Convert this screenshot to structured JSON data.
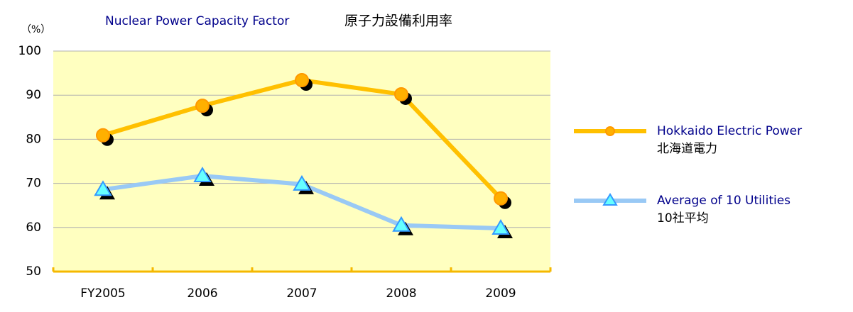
{
  "chart_data": {
    "type": "line",
    "title": "Nuclear Power Capacity Factor",
    "title_ja": "原子力設備利用率",
    "y_label": "（%）",
    "categories": [
      "FY2005",
      "2006",
      "2007",
      "2008",
      "2009"
    ],
    "series": [
      {
        "name": "Hokkaido Electric Power",
        "name_ja": "北海道電力",
        "color": "#ffc000",
        "marker_color": "#ffb000",
        "marker": "circle",
        "values": [
          80.9,
          87.6,
          93.4,
          90.2,
          66.6
        ]
      },
      {
        "name": "Average of 10 Utilities",
        "name_ja": "10社平均",
        "color": "#99c9f5",
        "marker_color": "#66ffff",
        "marker": "triangle",
        "values": [
          68.6,
          71.7,
          69.8,
          60.5,
          59.8
        ]
      }
    ],
    "ylim": [
      50,
      100
    ],
    "yticks": [
      50,
      60,
      70,
      80,
      90,
      100
    ],
    "grid": true,
    "legend": "right"
  }
}
